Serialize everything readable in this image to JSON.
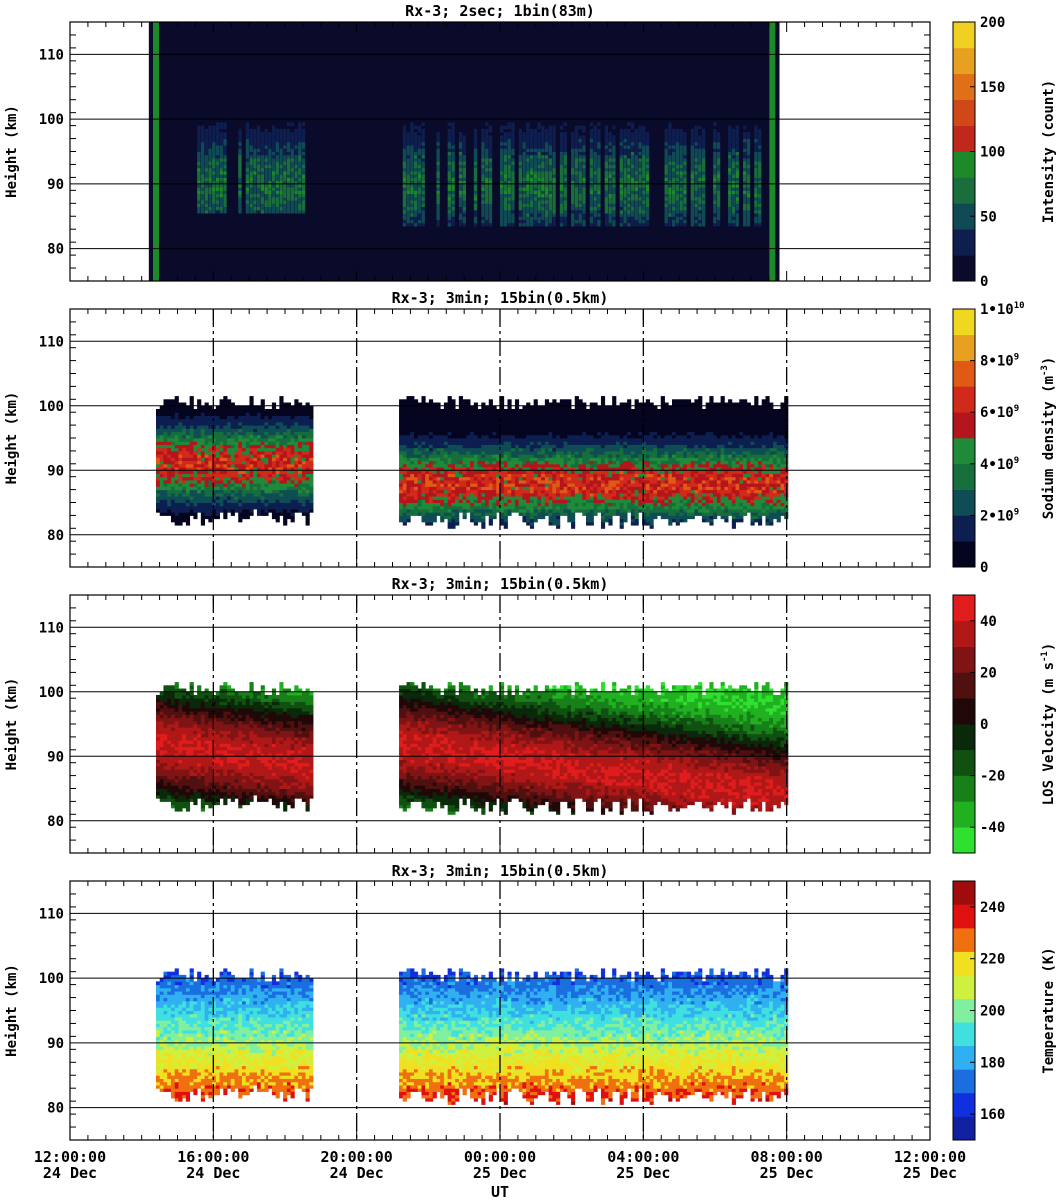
{
  "figure": {
    "xlabel": "UT",
    "x_ticks": [
      {
        "time": "12:00:00",
        "date": "24 Dec"
      },
      {
        "time": "16:00:00",
        "date": "24 Dec"
      },
      {
        "time": "20:00:00",
        "date": "24 Dec"
      },
      {
        "time": "00:00:00",
        "date": "25 Dec"
      },
      {
        "time": "04:00:00",
        "date": "25 Dec"
      },
      {
        "time": "08:00:00",
        "date": "25 Dec"
      },
      {
        "time": "12:00:00",
        "date": "25 Dec"
      }
    ]
  },
  "chart_data": [
    {
      "type": "heatmap",
      "title": "Rx-3;  2sec; 1bin(83m)",
      "ylabel": "Height (km)",
      "y_ticks": [
        "80",
        "90",
        "100",
        "110"
      ],
      "ylim": [
        75,
        115
      ],
      "xlim_hours": [
        0,
        24
      ],
      "grid": true,
      "variable": "intensity",
      "colorbar_label": "Intensity (count)",
      "colorbar_ticks": [
        "0",
        "50",
        "100",
        "150",
        "200"
      ],
      "colorbar_range": [
        0,
        200
      ],
      "colormap": [
        "#0a0a2a",
        "#0e1e4e",
        "#0f4a55",
        "#1a6e3c",
        "#1d8a2a",
        "#c0281c",
        "#d04818",
        "#e07018",
        "#e8a020",
        "#f0d020"
      ],
      "data_extent_hours": [
        2.2,
        19.8
      ],
      "layer_segments": [
        {
          "start_h": 3.5,
          "end_h": 6.6,
          "bottom_km": 85.5,
          "top_km": 99.5
        },
        {
          "start_h": 9.2,
          "end_h": 19.3,
          "bottom_km": 83.5,
          "top_km": 99.8
        }
      ],
      "layer_peak_km": 90,
      "layer_peak_value": 80,
      "calibration_bands_hours": [
        2.4,
        19.6
      ]
    },
    {
      "type": "heatmap",
      "title": "Rx-3; 3min; 15bin(0.5km)",
      "ylabel": "Height (km)",
      "y_ticks": [
        "80",
        "90",
        "100",
        "110"
      ],
      "ylim": [
        75,
        115
      ],
      "xlim_hours": [
        0,
        24
      ],
      "grid": true,
      "variable": "sodium_density",
      "colorbar_label_main": "Sodium density (m",
      "colorbar_label_sup": "-3",
      "colorbar_label_close": ")",
      "colorbar_ticks": [
        {
          "base": "0",
          "exp": ""
        },
        {
          "base": "2•10",
          "exp": "9"
        },
        {
          "base": "4•10",
          "exp": "9"
        },
        {
          "base": "6•10",
          "exp": "9"
        },
        {
          "base": "8•10",
          "exp": "9"
        },
        {
          "base": "1•10",
          "exp": "10"
        }
      ],
      "colorbar_range": [
        0,
        10000000000
      ],
      "colormap": [
        "#050520",
        "#0d1e50",
        "#0f4d55",
        "#166e3c",
        "#1f8b3a",
        "#b4141c",
        "#d22a1a",
        "#e05a16",
        "#e8a020",
        "#f0d820"
      ],
      "segments": [
        {
          "start_h": 2.4,
          "end_h": 6.8,
          "bottom_km": 81.5,
          "top_km": 101.5
        },
        {
          "start_h": 9.2,
          "end_h": 20.0,
          "bottom_km": 81.0,
          "top_km": 101.5
        }
      ],
      "layer_peak_km": [
        91,
        88
      ],
      "layer_peak_value": 6500000000
    },
    {
      "type": "heatmap",
      "title": "Rx-3; 3min; 15bin(0.5km)",
      "ylabel": "Height (km)",
      "y_ticks": [
        "80",
        "90",
        "100",
        "110"
      ],
      "ylim": [
        75,
        115
      ],
      "xlim_hours": [
        0,
        24
      ],
      "grid": true,
      "variable": "los_velocity",
      "colorbar_label_main": "LOS Velocity (m s",
      "colorbar_label_sup": "-1",
      "colorbar_label_close": ")",
      "colorbar_ticks": [
        "-40",
        "-20",
        "0",
        "20",
        "40"
      ],
      "colorbar_range": [
        -50,
        50
      ],
      "colormap": [
        "#30e030",
        "#20b020",
        "#188018",
        "#105010",
        "#0a280a",
        "#200808",
        "#501010",
        "#801414",
        "#b01818",
        "#e01c1c"
      ],
      "segments": [
        {
          "start_h": 2.4,
          "end_h": 6.8,
          "bottom_km": 81.5,
          "top_km": 101.5
        },
        {
          "start_h": 9.2,
          "end_h": 20.0,
          "bottom_km": 81.0,
          "top_km": 101.5
        }
      ],
      "phase_tilt_km_per_h": -1.2
    },
    {
      "type": "heatmap",
      "title": "Rx-3; 3min; 15bin(0.5km)",
      "ylabel": "Height (km)",
      "y_ticks": [
        "80",
        "90",
        "100",
        "110"
      ],
      "ylim": [
        75,
        115
      ],
      "xlim_hours": [
        0,
        24
      ],
      "grid": true,
      "variable": "temperature",
      "colorbar_label": "Temperature (K)",
      "colorbar_ticks": [
        "160",
        "180",
        "200",
        "220",
        "240"
      ],
      "colorbar_range": [
        150,
        250
      ],
      "colormap": [
        "#1020a0",
        "#1030e0",
        "#1a6ee0",
        "#30b0f0",
        "#40e0e0",
        "#80f0a0",
        "#d0f040",
        "#f0e020",
        "#f07010",
        "#e01010",
        "#a00c0c"
      ],
      "segments": [
        {
          "start_h": 2.4,
          "end_h": 6.8,
          "bottom_km": 81.0,
          "top_km": 101.5
        },
        {
          "start_h": 9.2,
          "end_h": 20.0,
          "bottom_km": 80.5,
          "top_km": 101.5
        }
      ],
      "temperature_at_100km": 170,
      "temperature_at_82km": 232
    }
  ]
}
